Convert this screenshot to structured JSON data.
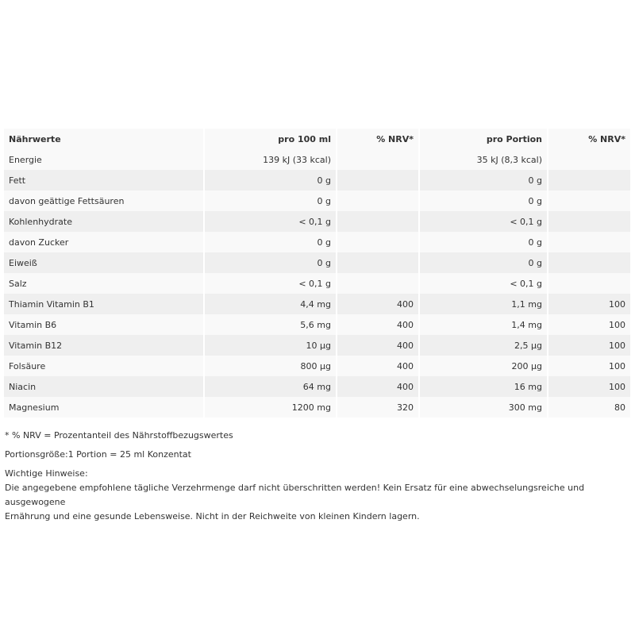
{
  "table": {
    "headers": [
      "Nährwerte",
      "pro 100 ml",
      "% NRV*",
      "pro Portion",
      "% NRV*"
    ],
    "rows": [
      [
        "Energie",
        "139 kJ (33 kcal)",
        "",
        "35 kJ (8,3 kcal)",
        ""
      ],
      [
        "Fett",
        "0 g",
        "",
        "0 g",
        ""
      ],
      [
        "davon geättige Fettsäuren",
        "0 g",
        "",
        "0 g",
        ""
      ],
      [
        "Kohlenhydrate",
        "< 0,1 g",
        "",
        "< 0,1 g",
        ""
      ],
      [
        "davon Zucker",
        "0 g",
        "",
        "0 g",
        ""
      ],
      [
        "Eiweiß",
        "0 g",
        "",
        "0 g",
        ""
      ],
      [
        "Salz",
        "< 0,1 g",
        "",
        "< 0,1 g",
        ""
      ],
      [
        "Thiamin Vitamin B1",
        "4,4 mg",
        "400",
        "1,1 mg",
        "100"
      ],
      [
        "Vitamin B6",
        "5,6 mg",
        "400",
        "1,4 mg",
        "100"
      ],
      [
        "Vitamin B12",
        "10 µg",
        "400",
        "2,5 µg",
        "100"
      ],
      [
        "Folsäure",
        "800 µg",
        "400",
        "200 µg",
        "100"
      ],
      [
        "Niacin",
        "64 mg",
        "400",
        "16 mg",
        "100"
      ],
      [
        "Magnesium",
        "1200 mg",
        "320",
        "300 mg",
        "80"
      ]
    ]
  },
  "notes": {
    "footnote": "* % NRV = Prozentanteil des Nährstoffbezugswertes",
    "portion": "Portionsgröße:1 Portion = 25 ml Konzentat",
    "hint_title": "Wichtige Hinweise:",
    "hint_line1": "Die angegebene empfohlene tägliche Verzehrmenge darf nicht überschritten werden! Kein Ersatz für eine abwechselungsreiche und ausgewogene",
    "hint_line2": "Ernährung und eine gesunde Lebensweise. Nicht in der Reichweite von kleinen Kindern lagern."
  }
}
